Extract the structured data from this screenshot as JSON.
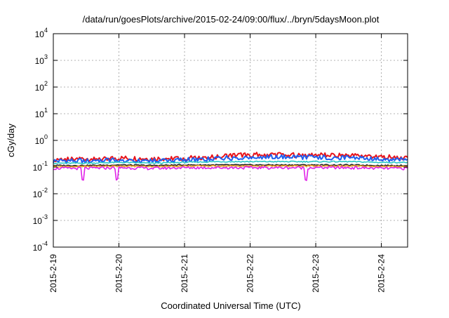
{
  "chart_data": {
    "type": "line",
    "title": "/data/run/goesPlots/archive/2015-02-24/09:00/flux/../bryn/5daysMoon.plot",
    "xlabel": "Coordinated Universal Time (UTC)",
    "ylabel": "cGy/day",
    "yscale": "log",
    "ylim_exponents": [
      -4,
      4
    ],
    "y_ticks": [
      {
        "base": "10",
        "exp": "-4",
        "value": -4
      },
      {
        "base": "10",
        "exp": "-3",
        "value": -3
      },
      {
        "base": "10",
        "exp": "-2",
        "value": -2
      },
      {
        "base": "10",
        "exp": "-1",
        "value": -1
      },
      {
        "base": "10",
        "exp": "0",
        "value": 0
      },
      {
        "base": "10",
        "exp": "1",
        "value": 1
      },
      {
        "base": "10",
        "exp": "2",
        "value": 2
      },
      {
        "base": "10",
        "exp": "3",
        "value": 3
      },
      {
        "base": "10",
        "exp": "4",
        "value": 4
      }
    ],
    "x_range_days": [
      0,
      5.4
    ],
    "x_ticks": [
      {
        "label": "2015-2-19",
        "day": 0
      },
      {
        "label": "2015-2-20",
        "day": 1
      },
      {
        "label": "2015-2-21",
        "day": 2
      },
      {
        "label": "2015-2-22",
        "day": 3
      },
      {
        "label": "2015-2-23",
        "day": 4
      },
      {
        "label": "2015-2-24",
        "day": 5
      }
    ],
    "grid": true,
    "series": [
      {
        "color": "#e8141b",
        "x": [
          0,
          0.5,
          1,
          1.5,
          2,
          2.5,
          3,
          3.5,
          4,
          4.5,
          5,
          5.4
        ],
        "y": [
          0.2,
          0.21,
          0.22,
          0.21,
          0.22,
          0.26,
          0.3,
          0.3,
          0.29,
          0.28,
          0.25,
          0.24
        ]
      },
      {
        "color": "#1f5ff0",
        "x": [
          0,
          0.5,
          1,
          1.5,
          2,
          2.5,
          3,
          3.5,
          4,
          4.5,
          5,
          5.4
        ],
        "y": [
          0.17,
          0.18,
          0.19,
          0.18,
          0.19,
          0.22,
          0.25,
          0.25,
          0.24,
          0.23,
          0.21,
          0.2
        ]
      },
      {
        "color": "#2ac7c4",
        "x": [
          0,
          0.5,
          1,
          1.5,
          2,
          2.5,
          3,
          3.5,
          4,
          4.5,
          5,
          5.4
        ],
        "y": [
          0.14,
          0.14,
          0.15,
          0.14,
          0.15,
          0.16,
          0.16,
          0.16,
          0.16,
          0.16,
          0.15,
          0.15
        ]
      },
      {
        "color": "#222222",
        "x": [
          0,
          0.5,
          1,
          1.5,
          2,
          2.5,
          3,
          3.5,
          4,
          4.5,
          5,
          5.4
        ],
        "y": [
          0.115,
          0.115,
          0.12,
          0.115,
          0.12,
          0.12,
          0.12,
          0.12,
          0.12,
          0.12,
          0.115,
          0.115
        ]
      },
      {
        "color": "#f0a020",
        "x": [
          0,
          0.5,
          1,
          1.5,
          2,
          2.5,
          3,
          3.5,
          4,
          4.5,
          5,
          5.4
        ],
        "y": [
          0.105,
          0.105,
          0.11,
          0.105,
          0.11,
          0.11,
          0.11,
          0.11,
          0.11,
          0.11,
          0.105,
          0.105
        ]
      },
      {
        "color": "#e020e8",
        "x": [
          0,
          0.5,
          1,
          1.5,
          2,
          2.5,
          3,
          3.5,
          4,
          4.5,
          5,
          5.4
        ],
        "y": [
          0.09,
          0.09,
          0.095,
          0.09,
          0.095,
          0.095,
          0.095,
          0.095,
          0.095,
          0.095,
          0.09,
          0.09
        ]
      }
    ]
  }
}
